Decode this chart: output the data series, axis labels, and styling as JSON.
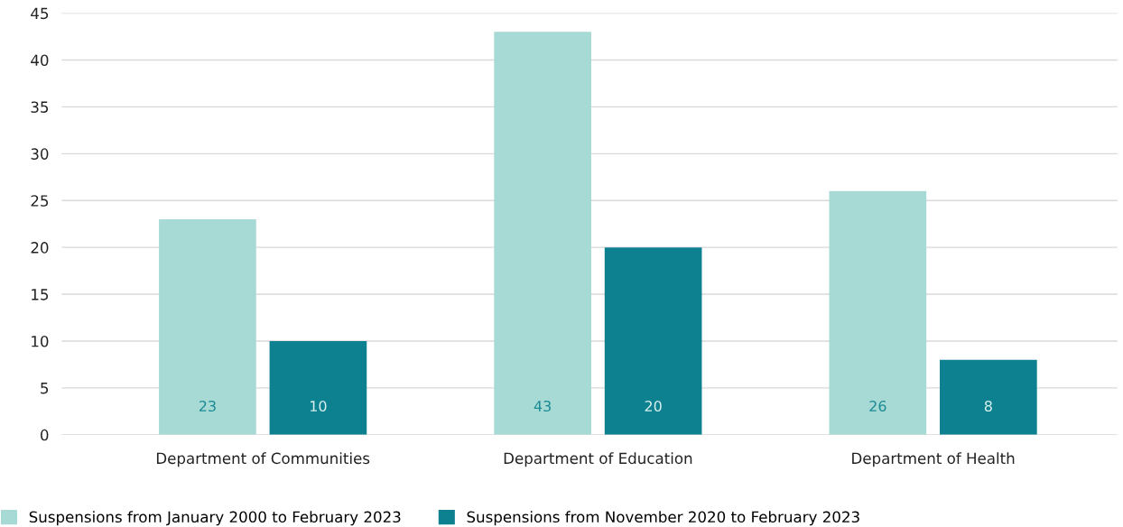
{
  "chart_data": {
    "type": "bar",
    "categories": [
      "Department of Communities",
      "Department of Education",
      "Department of Health"
    ],
    "series": [
      {
        "name": "Suspensions from January 2000 to February 2023",
        "color": "#a8dad5",
        "values": [
          23,
          43,
          26
        ]
      },
      {
        "name": "Suspensions from November 2020 to February 2023",
        "color": "#0e8190",
        "values": [
          10,
          20,
          8
        ]
      }
    ],
    "ylim": [
      0,
      45
    ],
    "yticks": [
      0,
      5,
      10,
      15,
      20,
      25,
      30,
      35,
      40,
      45
    ],
    "grid": "y",
    "legend": "bottom left",
    "data_labels": true
  }
}
